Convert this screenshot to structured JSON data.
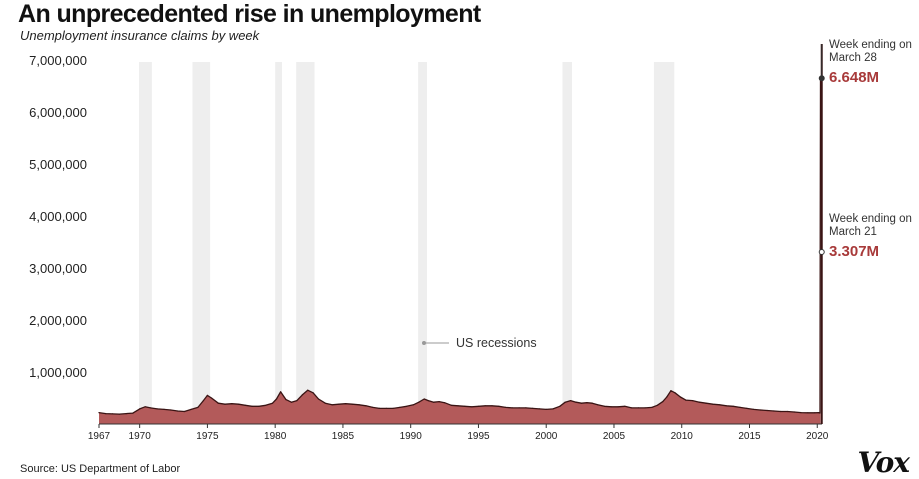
{
  "title": "An unprecedented rise in unemployment",
  "subtitle": "Unemployment insurance claims by week",
  "source": "Source: US Department of Labor",
  "logo_text": "Vox",
  "colors": {
    "area_fill": "#b35a5a",
    "area_line": "#3a1414",
    "recession": "#eeeeee",
    "highlight": "#a83a3a"
  },
  "chart_data": {
    "type": "area",
    "title": "An unprecedented rise in unemployment",
    "subtitle": "Unemployment insurance claims by week",
    "xlabel": "",
    "ylabel": "",
    "xlim": [
      1967,
      2020.35
    ],
    "ylim": [
      0,
      7000000
    ],
    "y_ticks": [
      1000000,
      2000000,
      3000000,
      4000000,
      5000000,
      6000000,
      7000000
    ],
    "y_tick_labels": [
      "1,000,000",
      "2,000,000",
      "3,000,000",
      "4,000,000",
      "5,000,000",
      "6,000,000",
      "7,000,000"
    ],
    "x_ticks": [
      1967,
      1970,
      1975,
      1980,
      1985,
      1990,
      1995,
      2000,
      2005,
      2010,
      2015,
      2020
    ],
    "x_tick_labels": [
      "1967",
      "1970",
      "1975",
      "1980",
      "1985",
      "1990",
      "1995",
      "2000",
      "2005",
      "2010",
      "2015",
      "2020"
    ],
    "grid": false,
    "series": [
      {
        "x": [
          1967.0,
          1967.5,
          1968.0,
          1968.5,
          1969.0,
          1969.5,
          1970.0,
          1970.4,
          1970.8,
          1971.3,
          1971.8,
          1972.3,
          1972.8,
          1973.3,
          1973.8,
          1974.3,
          1974.7,
          1975.0,
          1975.3,
          1975.8,
          1976.3,
          1976.8,
          1977.3,
          1977.8,
          1978.3,
          1978.8,
          1979.3,
          1979.8,
          1980.1,
          1980.4,
          1980.8,
          1981.2,
          1981.6,
          1982.0,
          1982.4,
          1982.8,
          1983.2,
          1983.7,
          1984.2,
          1984.7,
          1985.2,
          1985.7,
          1986.2,
          1986.7,
          1987.2,
          1987.7,
          1988.2,
          1988.7,
          1989.2,
          1989.7,
          1990.2,
          1990.6,
          1991.0,
          1991.3,
          1991.7,
          1992.1,
          1992.5,
          1993.0,
          1993.5,
          1994.0,
          1994.5,
          1995.0,
          1995.5,
          1996.0,
          1996.5,
          1997.0,
          1997.5,
          1998.0,
          1998.5,
          1999.0,
          1999.5,
          2000.0,
          2000.5,
          2001.0,
          2001.4,
          2001.8,
          2002.2,
          2002.6,
          2003.0,
          2003.4,
          2003.8,
          2004.3,
          2004.8,
          2005.3,
          2005.8,
          2006.3,
          2006.8,
          2007.3,
          2007.8,
          2008.2,
          2008.6,
          2008.9,
          2009.2,
          2009.5,
          2009.9,
          2010.3,
          2010.8,
          2011.3,
          2011.8,
          2012.3,
          2012.8,
          2013.3,
          2013.8,
          2014.3,
          2014.8,
          2015.3,
          2015.8,
          2016.3,
          2016.8,
          2017.3,
          2017.8,
          2018.3,
          2018.8,
          2019.3,
          2019.8,
          2020.1,
          2020.2
        ],
        "values": [
          220000,
          200000,
          195000,
          190000,
          200000,
          210000,
          290000,
          330000,
          310000,
          290000,
          280000,
          270000,
          250000,
          240000,
          280000,
          320000,
          450000,
          550000,
          500000,
          400000,
          380000,
          390000,
          380000,
          360000,
          340000,
          340000,
          360000,
          400000,
          480000,
          620000,
          470000,
          420000,
          450000,
          560000,
          650000,
          600000,
          480000,
          400000,
          370000,
          380000,
          390000,
          380000,
          370000,
          350000,
          320000,
          300000,
          300000,
          300000,
          320000,
          340000,
          370000,
          420000,
          480000,
          450000,
          420000,
          430000,
          410000,
          360000,
          350000,
          340000,
          330000,
          340000,
          350000,
          350000,
          340000,
          320000,
          310000,
          310000,
          310000,
          300000,
          290000,
          280000,
          290000,
          340000,
          420000,
          450000,
          420000,
          400000,
          410000,
          400000,
          370000,
          340000,
          330000,
          330000,
          340000,
          310000,
          310000,
          310000,
          320000,
          360000,
          430000,
          520000,
          640000,
          600000,
          520000,
          460000,
          450000,
          420000,
          400000,
          380000,
          370000,
          350000,
          340000,
          320000,
          300000,
          280000,
          270000,
          260000,
          250000,
          240000,
          240000,
          230000,
          220000,
          215000,
          215000,
          220000,
          211000
        ]
      }
    ],
    "recessions": [
      [
        1969.95,
        1970.9
      ],
      [
        1973.9,
        1975.2
      ],
      [
        1980.0,
        1980.5
      ],
      [
        1981.55,
        1982.9
      ],
      [
        1990.55,
        1991.2
      ],
      [
        2001.2,
        2001.9
      ],
      [
        2007.95,
        2009.45
      ]
    ],
    "recession_label": "US recessions",
    "annotations": [
      {
        "label_line1": "Week ending on",
        "label_line2": "March 21",
        "value_label": "3.307M",
        "x": 2020.22,
        "y": 3307000
      },
      {
        "label_line1": "Week ending on",
        "label_line2": "March 28",
        "value_label": "6.648M",
        "x": 2020.24,
        "y": 6648000
      }
    ]
  }
}
